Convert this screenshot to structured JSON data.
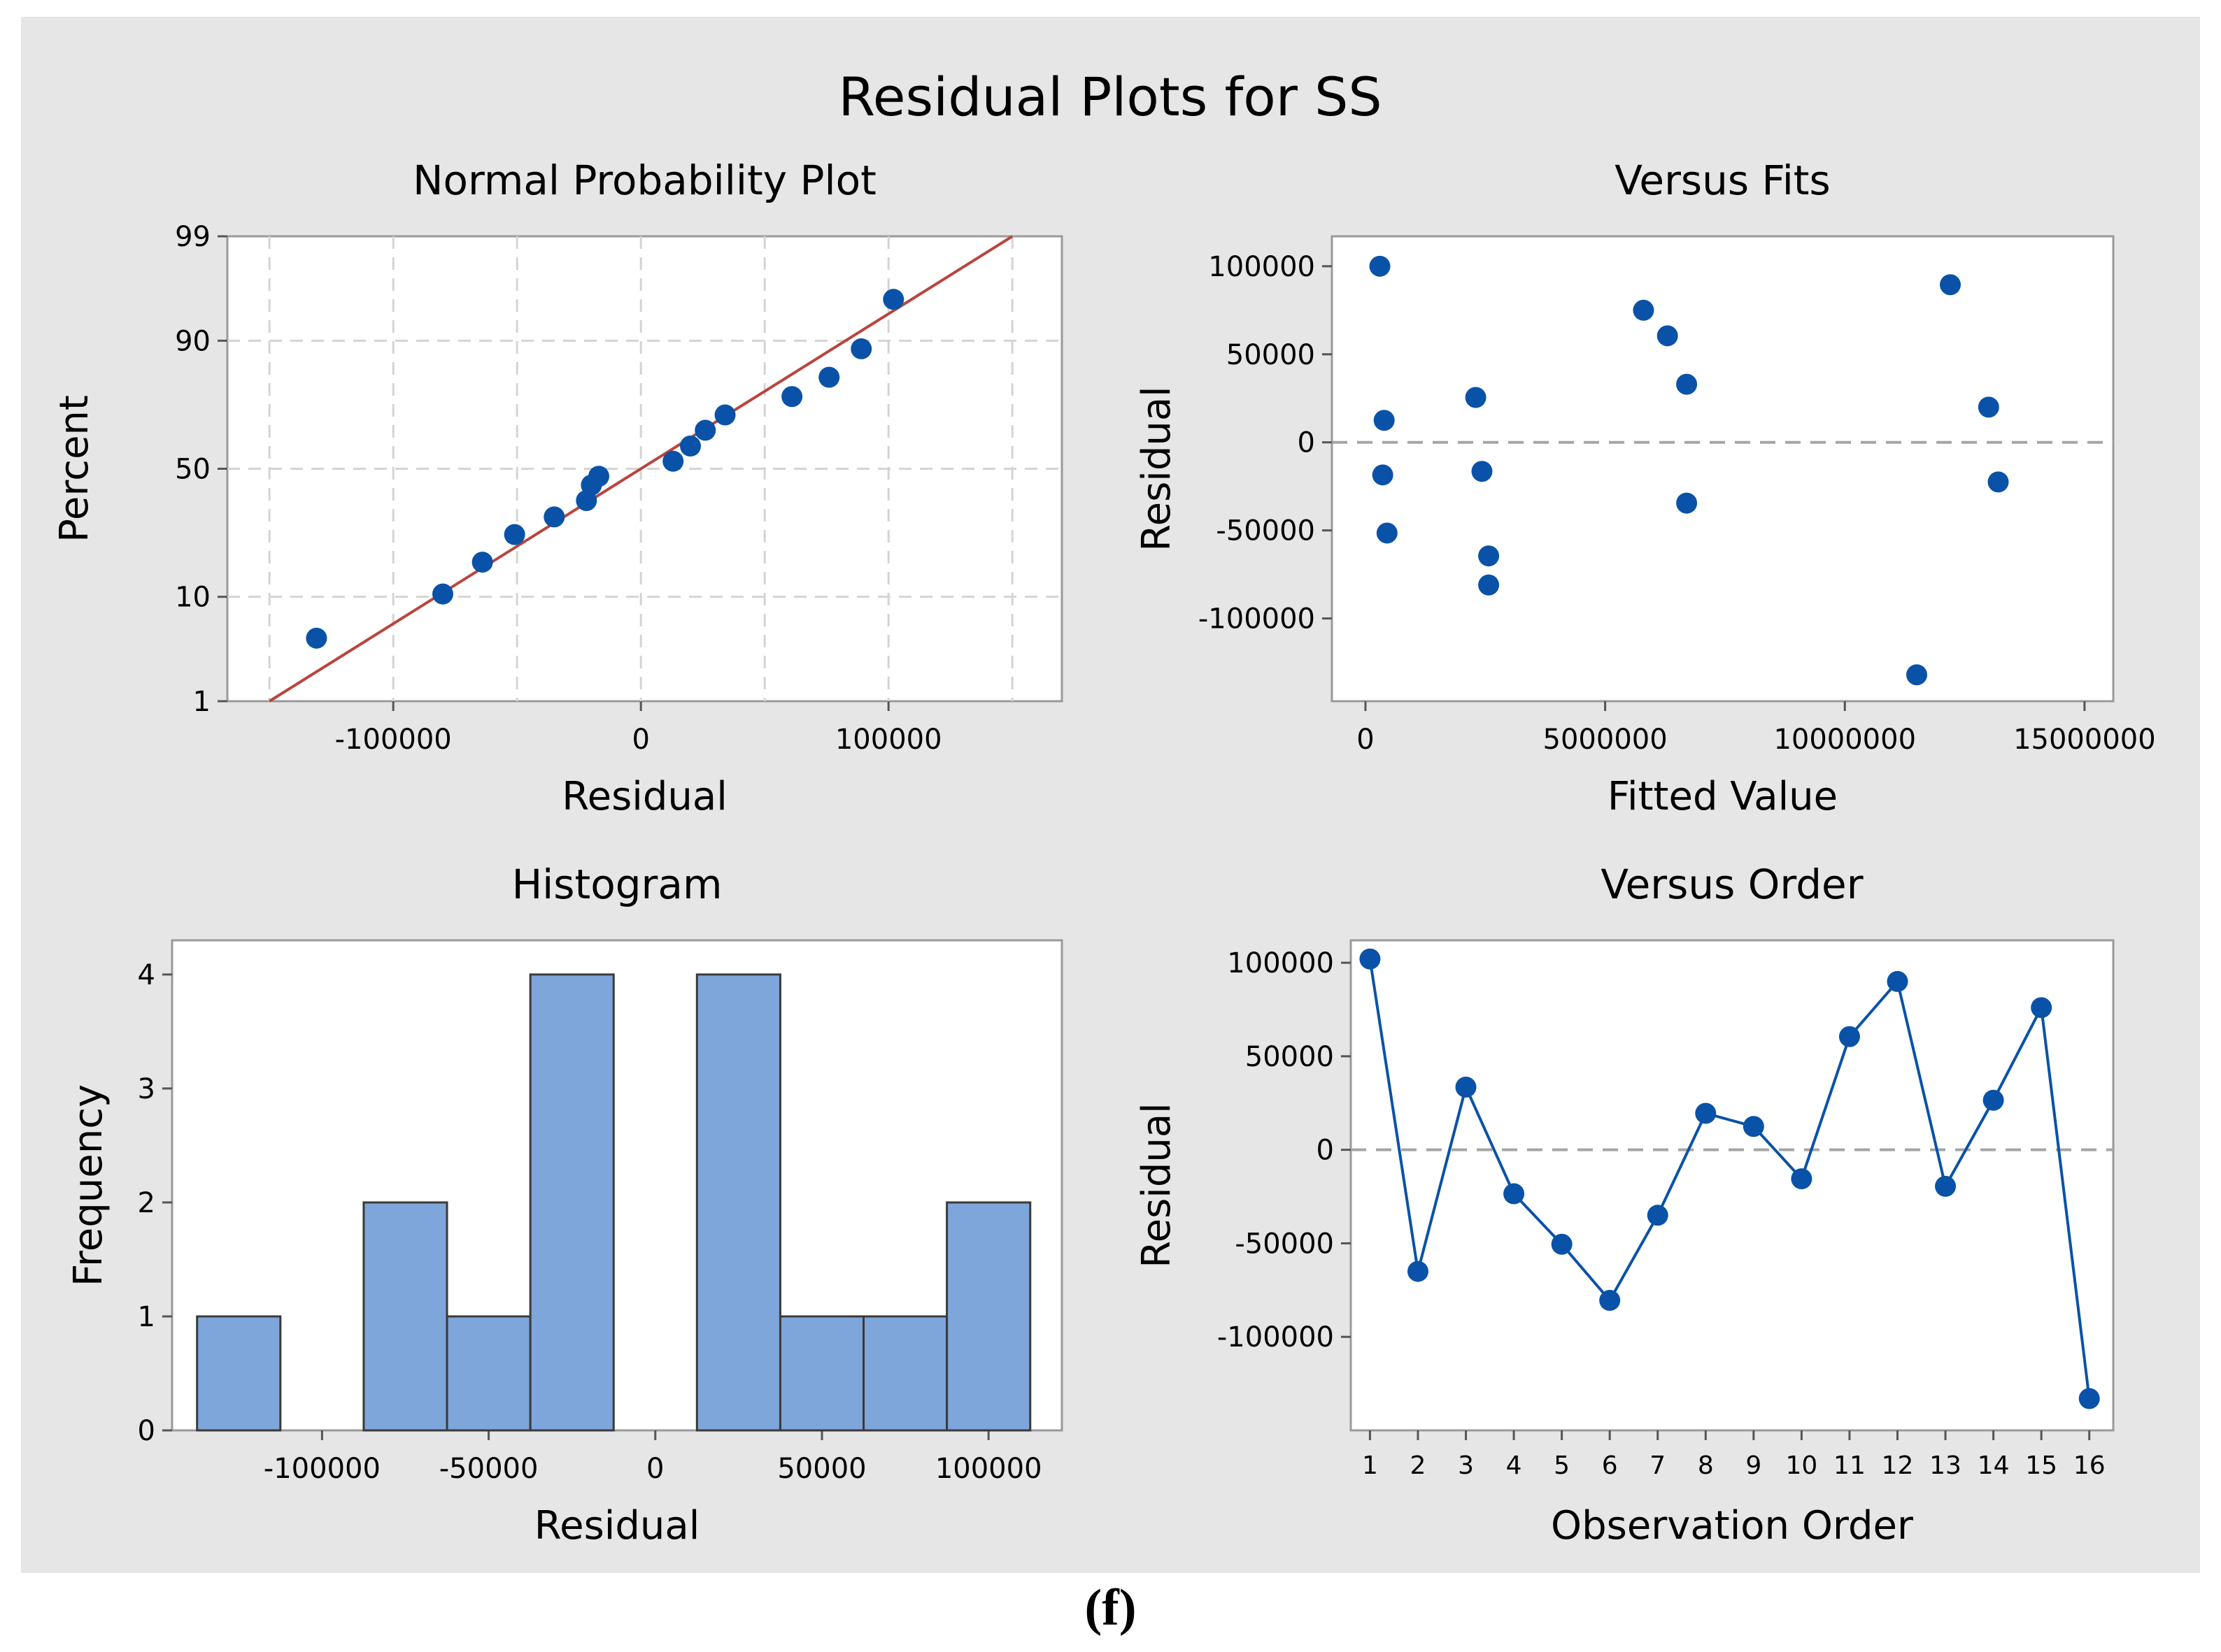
{
  "figure": {
    "title": "Residual Plots for SS",
    "caption": "(f)",
    "colors": {
      "panel_bg": "#e6e6e6",
      "plot_bg": "#ffffff",
      "marker": "#0a52a8",
      "fit_line": "#b8453f",
      "bar_fill": "#7ea6da",
      "bar_stroke": "#3a3a3a",
      "grid": "#d4d4d4",
      "ref_line": "#a5a5a5"
    }
  },
  "chart_data": [
    {
      "id": "normal_probability",
      "type": "scatter",
      "title": "Normal Probability Plot",
      "xlabel": "Residual",
      "ylabel": "Percent",
      "xlim": [
        -167000,
        170000
      ],
      "x_ticks": [
        -100000,
        0,
        100000
      ],
      "y_ticks": [
        1,
        10,
        50,
        90,
        99
      ],
      "grid": true,
      "x": [
        -131000,
        -80000,
        -64000,
        -51000,
        -35000,
        -22000,
        -20000,
        -17000,
        13000,
        20000,
        26000,
        34000,
        61000,
        76000,
        89000,
        102000
      ],
      "y": [
        4.5,
        10.5,
        17.5,
        25.5,
        31.5,
        37.5,
        43.5,
        47,
        53,
        59,
        65,
        70.5,
        76.5,
        82,
        88.5,
        95.5
      ],
      "fit_line": {
        "x": [
          -150000,
          150000
        ],
        "y": [
          1,
          99
        ]
      }
    },
    {
      "id": "versus_fits",
      "type": "scatter",
      "title": "Versus Fits",
      "xlabel": "Fitted Value",
      "ylabel": "Residual",
      "xlim": [
        -700000,
        15600000
      ],
      "ylim": [
        -147000,
        117000
      ],
      "x_ticks": [
        0,
        5000000,
        10000000,
        15000000
      ],
      "y_ticks": [
        -100000,
        -50000,
        0,
        50000,
        100000
      ],
      "reference_line": 0,
      "x": [
        300000,
        390000,
        360000,
        450000,
        2300000,
        2430000,
        2570000,
        2570000,
        5800000,
        6300000,
        6700000,
        6700000,
        11500000,
        12200000,
        13000000,
        13200000
      ],
      "y": [
        100000,
        12500,
        -18500,
        -51500,
        25500,
        -16500,
        -64500,
        -81000,
        75000,
        60500,
        33000,
        -34500,
        -132000,
        89500,
        20000,
        -22500
      ]
    },
    {
      "id": "histogram",
      "type": "bar",
      "title": "Histogram",
      "xlabel": "Residual",
      "ylabel": "Frequency",
      "xlim": [
        -145000,
        122000
      ],
      "ylim": [
        0,
        4.3
      ],
      "x_ticks": [
        -100000,
        -50000,
        0,
        50000,
        100000
      ],
      "y_ticks": [
        0,
        1,
        2,
        3,
        4
      ],
      "bin_edges": [
        -137500,
        -112500,
        -87500,
        -62500,
        -37500,
        -12500,
        12500,
        37500,
        62500,
        87500,
        112500
      ],
      "values": [
        1,
        0,
        2,
        1,
        4,
        0,
        4,
        1,
        1,
        2
      ]
    },
    {
      "id": "versus_order",
      "type": "line",
      "title": "Versus Order",
      "xlabel": "Observation Order",
      "ylabel": "Residual",
      "xlim": [
        0.6,
        16.5
      ],
      "ylim": [
        -150000,
        112000
      ],
      "y_ticks": [
        -100000,
        -50000,
        0,
        50000,
        100000
      ],
      "reference_line": 0,
      "x": [
        1,
        2,
        3,
        4,
        5,
        6,
        7,
        8,
        9,
        10,
        11,
        12,
        13,
        14,
        15,
        16
      ],
      "y": [
        102000,
        -65000,
        33500,
        -23500,
        -50500,
        -80500,
        -35000,
        19500,
        12500,
        -15500,
        60500,
        90000,
        -19500,
        26500,
        76000,
        -133000
      ]
    }
  ]
}
